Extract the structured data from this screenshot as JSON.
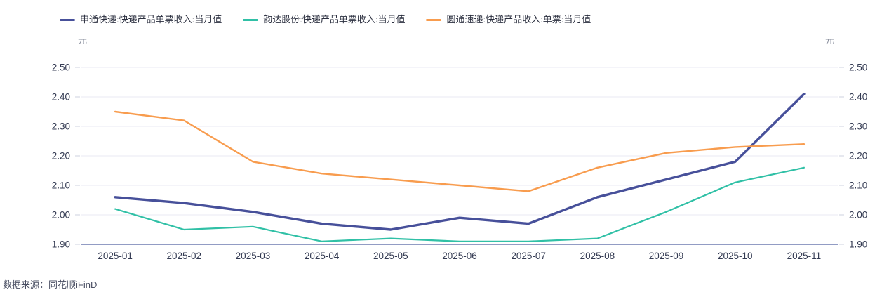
{
  "legend": {
    "items": [
      {
        "key": "shentong",
        "label": "申通快递:快递产品单票收入:当月值",
        "color": "#47509a"
      },
      {
        "key": "yunda",
        "label": "韵达股份:快递产品单票收入:当月值",
        "color": "#30c0a6"
      },
      {
        "key": "yuantong",
        "label": "圆通速递:快递产品收入:单票:当月值",
        "color": "#f89c4e"
      }
    ]
  },
  "footer": {
    "source_label": "数据来源：同花顺iFinD"
  },
  "chart_data": {
    "type": "line",
    "title": "",
    "ylabel": "元",
    "ylabel_right": "元",
    "x": [
      "2025-01",
      "2025-02",
      "2025-03",
      "2025-04",
      "2025-05",
      "2025-06",
      "2025-07",
      "2025-08",
      "2025-09",
      "2025-10",
      "2025-11"
    ],
    "series": [
      {
        "key": "shentong",
        "name": "申通快递:快递产品单票收入:当月值",
        "color": "#47509a",
        "line_width": 3.4,
        "values": [
          2.06,
          2.04,
          2.01,
          1.97,
          1.95,
          1.99,
          1.97,
          2.06,
          2.12,
          2.18,
          2.41
        ]
      },
      {
        "key": "yunda",
        "name": "韵达股份:快递产品单票收入:当月值",
        "color": "#30c0a6",
        "line_width": 2.2,
        "values": [
          2.02,
          1.95,
          1.96,
          1.91,
          1.92,
          1.91,
          1.91,
          1.92,
          2.01,
          2.11,
          2.16
        ]
      },
      {
        "key": "yuantong",
        "name": "圆通速递:快递产品收入:单票:当月值",
        "color": "#f89c4e",
        "line_width": 2.4,
        "values": [
          2.35,
          2.32,
          2.18,
          2.14,
          2.12,
          2.1,
          2.08,
          2.16,
          2.21,
          2.23,
          2.24
        ]
      }
    ],
    "ylim": [
      1.9,
      2.5
    ],
    "yticks": [
      1.9,
      2.0,
      2.1,
      2.2,
      2.3,
      2.4,
      2.5
    ],
    "grid": true,
    "dual_y_axis": true,
    "legend_position": "top-left"
  },
  "style": {
    "grid_color": "#e8eaf3",
    "axis_line_color": "#6e7cb0",
    "tick_mark_color": "#ccd1df",
    "tick_label_color": "#333a52",
    "background": "#ffffff"
  }
}
